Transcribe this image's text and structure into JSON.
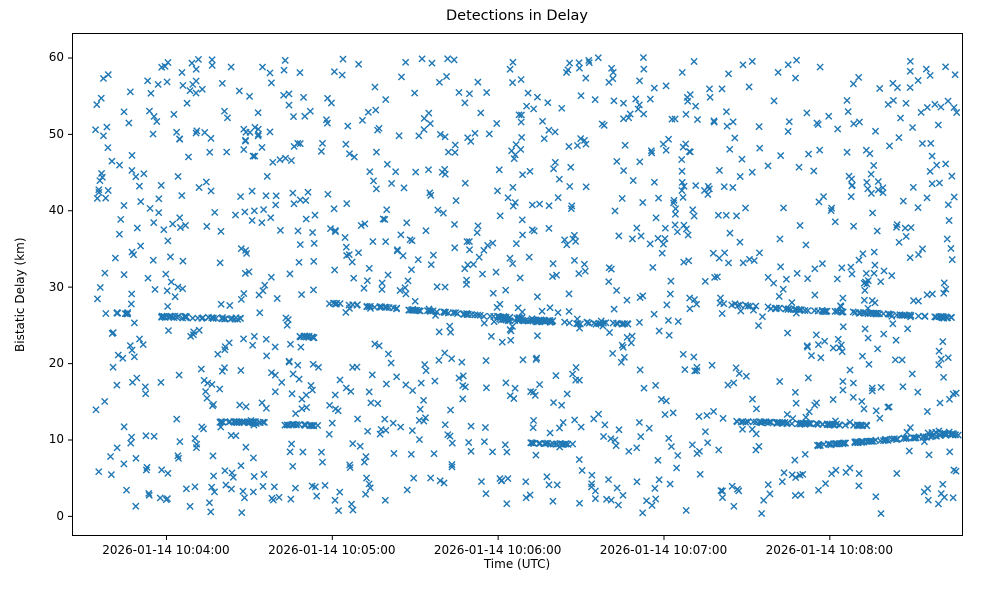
{
  "colors": {
    "marker": "#1f77b4",
    "axis": "#000000",
    "background": "#ffffff",
    "text": "#000000"
  },
  "chart_data": {
    "type": "scatter",
    "title": "Detections in Delay",
    "xlabel": "Time (UTC)",
    "ylabel": "Bistatic Delay (km)",
    "marker": "x",
    "marker_color": "#1f77b4",
    "grid": false,
    "legend": null,
    "x_axis": {
      "unit": "seconds relative to 2026-01-14 10:04:00 UTC",
      "lim": [
        -34,
        288
      ],
      "ticks": [
        {
          "t": 0,
          "label": "2026-01-14 10:04:00"
        },
        {
          "t": 60,
          "label": "2026-01-14 10:05:00"
        },
        {
          "t": 120,
          "label": "2026-01-14 10:06:00"
        },
        {
          "t": 180,
          "label": "2026-01-14 10:07:00"
        },
        {
          "t": 240,
          "label": "2026-01-14 10:08:00"
        }
      ]
    },
    "y_axis": {
      "lim": [
        -2.5,
        63.2
      ],
      "ticks": [
        0,
        10,
        20,
        30,
        40,
        50,
        60
      ]
    },
    "series": {
      "description": "Dense uniform clutter of blue 'x' detections over 0-60 km delay, plus slowly varying dense target tracks near 26 km, 23.5 km, 12 km and 10 km bistatic delay.",
      "tracks": [
        {
          "t0": -18,
          "t1": -13,
          "y0": 26.6,
          "y1": 26.5,
          "count": 8,
          "jy": 0.1
        },
        {
          "t0": -3,
          "t1": 27,
          "y0": 26.1,
          "y1": 25.8,
          "count": 42,
          "jy": 0.12
        },
        {
          "t0": 19,
          "t1": 36,
          "y0": 12.3,
          "y1": 12.25,
          "count": 34,
          "jy": 0.08
        },
        {
          "t0": 43,
          "t1": 55,
          "y0": 11.95,
          "y1": 11.85,
          "count": 22,
          "jy": 0.08
        },
        {
          "t0": 48,
          "t1": 54,
          "y0": 23.5,
          "y1": 23.4,
          "count": 14,
          "jy": 0.1
        },
        {
          "t0": 57,
          "t1": 140,
          "y0": 27.9,
          "y1": 25.5,
          "count": 95,
          "jy": 0.1
        },
        {
          "t0": 120,
          "t1": 150,
          "y0": 25.7,
          "y1": 25.2,
          "count": 30,
          "jy": 0.1
        },
        {
          "t0": 131,
          "t1": 148,
          "y0": 9.5,
          "y1": 9.4,
          "count": 24,
          "jy": 0.1
        },
        {
          "t0": 152,
          "t1": 168,
          "y0": 25.3,
          "y1": 25.1,
          "count": 18,
          "jy": 0.08
        },
        {
          "t0": 200,
          "t1": 218,
          "y0": 27.8,
          "y1": 27.3,
          "count": 10,
          "jy": 0.1
        },
        {
          "t0": 206,
          "t1": 256,
          "y0": 12.35,
          "y1": 11.8,
          "count": 80,
          "jy": 0.09
        },
        {
          "t0": 218,
          "t1": 287,
          "y0": 27.2,
          "y1": 25.9,
          "count": 85,
          "jy": 0.09
        },
        {
          "t0": 235,
          "t1": 287,
          "y0": 9.2,
          "y1": 10.7,
          "count": 80,
          "jy": 0.09
        },
        {
          "t0": 276,
          "t1": 288,
          "y0": 10.9,
          "y1": 10.6,
          "count": 12,
          "jy": 0.08
        }
      ],
      "noise": {
        "count": 1250,
        "t_range": [
          -26,
          287
        ],
        "y_range": [
          0.3,
          60
        ],
        "seed": 42
      }
    }
  }
}
